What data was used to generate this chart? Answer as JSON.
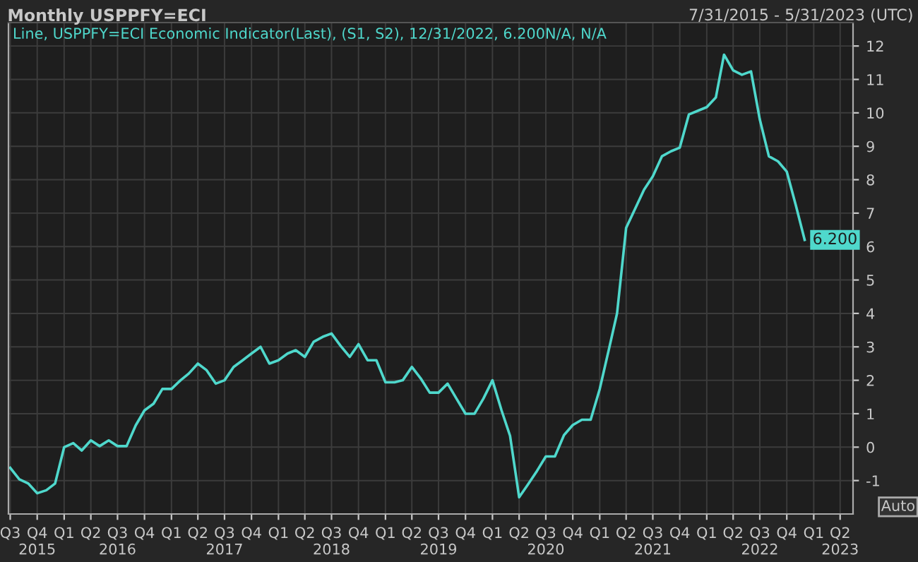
{
  "chart_data": {
    "type": "line",
    "title": "Monthly USPPFY=ECI",
    "subtitle": "7/31/2015 - 5/31/2023 (UTC)",
    "annotations": [
      "Line, USPPFY=ECI Economic Indicator(Last), (S1, S2), 12/31/2022, 6.200N/A, N/A",
      "Auto"
    ],
    "x": [
      "2015-07",
      "2015-08",
      "2015-09",
      "2015-10",
      "2015-11",
      "2015-12",
      "2016-01",
      "2016-02",
      "2016-03",
      "2016-04",
      "2016-05",
      "2016-06",
      "2016-07",
      "2016-08",
      "2016-09",
      "2016-10",
      "2016-11",
      "2016-12",
      "2017-01",
      "2017-02",
      "2017-03",
      "2017-04",
      "2017-05",
      "2017-06",
      "2017-07",
      "2017-08",
      "2017-09",
      "2017-10",
      "2017-11",
      "2017-12",
      "2018-01",
      "2018-02",
      "2018-03",
      "2018-04",
      "2018-05",
      "2018-06",
      "2018-07",
      "2018-08",
      "2018-09",
      "2018-10",
      "2018-11",
      "2018-12",
      "2019-01",
      "2019-02",
      "2019-03",
      "2019-04",
      "2019-05",
      "2019-06",
      "2019-07",
      "2019-08",
      "2019-09",
      "2019-10",
      "2019-11",
      "2019-12",
      "2020-01",
      "2020-02",
      "2020-03",
      "2020-04",
      "2020-05",
      "2020-06",
      "2020-07",
      "2020-08",
      "2020-09",
      "2020-10",
      "2020-11",
      "2020-12",
      "2021-01",
      "2021-02",
      "2021-03",
      "2021-04",
      "2021-05",
      "2021-06",
      "2021-07",
      "2021-08",
      "2021-09",
      "2021-10",
      "2021-11",
      "2021-12",
      "2022-01",
      "2022-02",
      "2022-03",
      "2022-04",
      "2022-05",
      "2022-06",
      "2022-07",
      "2022-08",
      "2022-09",
      "2022-10",
      "2022-11",
      "2022-12"
    ],
    "series": [
      {
        "color": "#4fd8cc",
        "values": [
          -0.62,
          -0.96,
          -1.09,
          -1.38,
          -1.29,
          -1.09,
          0.0,
          0.12,
          -0.1,
          0.2,
          0.03,
          0.2,
          0.03,
          0.03,
          0.65,
          1.1,
          1.3,
          1.74,
          1.74,
          2.0,
          2.2,
          2.5,
          2.3,
          1.9,
          2.0,
          2.4,
          2.6,
          2.8,
          3.0,
          2.5,
          2.6,
          2.8,
          2.9,
          2.7,
          3.15,
          3.3,
          3.4,
          3.03,
          2.7,
          3.08,
          2.6,
          2.6,
          1.94,
          1.94,
          2.0,
          2.4,
          2.06,
          1.63,
          1.63,
          1.9,
          1.44,
          1.0,
          1.0,
          1.45,
          2.0,
          1.1,
          0.34,
          -1.5,
          -1.12,
          -0.71,
          -0.28,
          -0.28,
          0.36,
          0.66,
          0.82,
          0.82,
          1.74,
          2.92,
          4.0,
          6.56,
          7.12,
          7.7,
          8.1,
          8.7,
          8.85,
          8.96,
          9.95,
          10.06,
          10.17,
          10.46,
          11.74,
          11.27,
          11.14,
          11.24,
          9.8,
          8.7,
          8.55,
          8.24,
          7.23,
          6.2
        ],
        "value_labels": [
          null,
          null,
          null,
          null,
          null,
          null,
          null,
          null,
          null,
          null,
          null,
          null,
          null,
          null,
          null,
          null,
          null,
          null,
          null,
          null,
          null,
          null,
          null,
          null,
          null,
          null,
          null,
          null,
          null,
          null,
          null,
          null,
          null,
          null,
          null,
          null,
          null,
          null,
          null,
          null,
          null,
          null,
          null,
          null,
          null,
          null,
          null,
          null,
          null,
          null,
          null,
          null,
          null,
          null,
          null,
          null,
          null,
          null,
          null,
          null,
          null,
          null,
          null,
          null,
          null,
          null,
          null,
          null,
          null,
          null,
          null,
          null,
          null,
          null,
          null,
          null,
          null,
          null,
          null,
          null,
          null,
          null,
          null,
          null,
          null,
          null,
          null,
          null,
          null,
          "6.200"
        ]
      }
    ],
    "xlim": [
      "2015-06-25",
      "2023-05-15"
    ],
    "xticks": [
      {
        "value": "2015-07",
        "label": "Q3"
      },
      {
        "value": "2015-10",
        "label": "Q4\n2015"
      },
      {
        "value": "2016-01",
        "label": "Q1"
      },
      {
        "value": "2016-04",
        "label": "Q2"
      },
      {
        "value": "2016-07",
        "label": "Q3\n2016"
      },
      {
        "value": "2016-10",
        "label": "Q4"
      },
      {
        "value": "2017-01",
        "label": "Q1"
      },
      {
        "value": "2017-04",
        "label": "Q2"
      },
      {
        "value": "2017-07",
        "label": "Q3\n2017"
      },
      {
        "value": "2017-10",
        "label": "Q4"
      },
      {
        "value": "2018-01",
        "label": "Q1"
      },
      {
        "value": "2018-04",
        "label": "Q2"
      },
      {
        "value": "2018-07",
        "label": "Q3\n2018"
      },
      {
        "value": "2018-10",
        "label": "Q4"
      },
      {
        "value": "2019-01",
        "label": "Q1"
      },
      {
        "value": "2019-04",
        "label": "Q2"
      },
      {
        "value": "2019-07",
        "label": "Q3\n2019"
      },
      {
        "value": "2019-10",
        "label": "Q4"
      },
      {
        "value": "2020-01",
        "label": "Q1"
      },
      {
        "value": "2020-04",
        "label": "Q2"
      },
      {
        "value": "2020-07",
        "label": "Q3\n2020"
      },
      {
        "value": "2020-10",
        "label": "Q4"
      },
      {
        "value": "2021-01",
        "label": "Q1"
      },
      {
        "value": "2021-04",
        "label": "Q2"
      },
      {
        "value": "2021-07",
        "label": "Q3\n2021"
      },
      {
        "value": "2021-10",
        "label": "Q4"
      },
      {
        "value": "2022-01",
        "label": "Q1"
      },
      {
        "value": "2022-04",
        "label": "Q2"
      },
      {
        "value": "2022-07",
        "label": "Q3\n2022"
      },
      {
        "value": "2022-10",
        "label": "Q4"
      },
      {
        "value": "2023-01",
        "label": "Q1"
      },
      {
        "value": "2023-04",
        "label": "Q2\n2023"
      }
    ],
    "ylim": [
      -2,
      12.7
    ],
    "yticks": [
      -1,
      0,
      1,
      2,
      3,
      4,
      5,
      6,
      7,
      8,
      9,
      10,
      11,
      12
    ],
    "grid": true,
    "legend": false,
    "marker": "none",
    "line_style": "solid"
  }
}
